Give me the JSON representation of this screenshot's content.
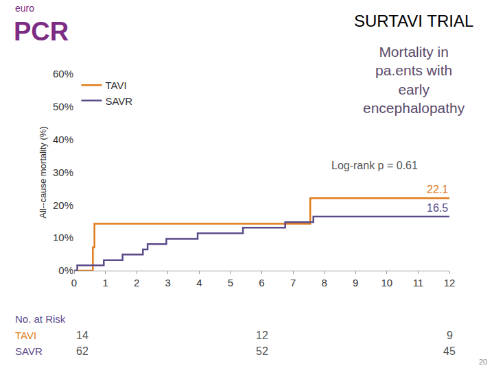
{
  "chart_data": {
    "type": "line",
    "title": "SURTAVI TRIAL",
    "subtitle": [
      "Mortality in",
      "pa.ents with",
      "early",
      "encephalopathy"
    ],
    "y_label": "All-‐cause mortality (%)",
    "annotations": [
      "Log-rank p = 0.61"
    ],
    "series": [
      {
        "name": "TAVI",
        "color": "#e07b1a",
        "line_style": "step",
        "x": [
          0,
          0.6,
          0.65,
          7.55,
          12
        ],
        "values": [
          0,
          7.1,
          14.3,
          22.1,
          22.1
        ]
      },
      {
        "name": "SAVR",
        "color": "#5b4a8a",
        "line_style": "step",
        "x": [
          0,
          0.1,
          0.95,
          1.55,
          2.2,
          2.35,
          2.95,
          3.95,
          5.4,
          6.75,
          7.65,
          12
        ],
        "values": [
          0,
          1.6,
          3.2,
          4.9,
          6.5,
          8.1,
          9.7,
          11.4,
          13.1,
          14.8,
          16.5,
          16.5
        ]
      }
    ],
    "xlim": [
      0,
      12
    ],
    "xticks": [
      0,
      1,
      2,
      3,
      4,
      5,
      6,
      7,
      8,
      9,
      10,
      11,
      12
    ],
    "ylim": [
      0,
      60
    ],
    "yticks": [
      {
        "value": 0,
        "label": "0%"
      },
      {
        "value": 10,
        "label": "10%"
      },
      {
        "value": 20,
        "label": "20%"
      },
      {
        "value": 30,
        "label": "30%"
      },
      {
        "value": 40,
        "label": "40%"
      },
      {
        "value": 50,
        "label": "50%"
      },
      {
        "value": 60,
        "label": "60%"
      }
    ],
    "grid": false,
    "legend": "top-left",
    "risk_table": {
      "title": "No. at Risk",
      "x": [
        0,
        6,
        12
      ],
      "rows": [
        {
          "name": "TAVI",
          "color": "#e07b1a",
          "values": [
            14,
            12,
            9
          ]
        },
        {
          "name": "SAVR",
          "color": "#5b4a8a",
          "values": [
            62,
            52,
            45
          ]
        }
      ]
    }
  },
  "logo": {
    "small": "euro",
    "large": "PCR"
  },
  "page_number": 20
}
